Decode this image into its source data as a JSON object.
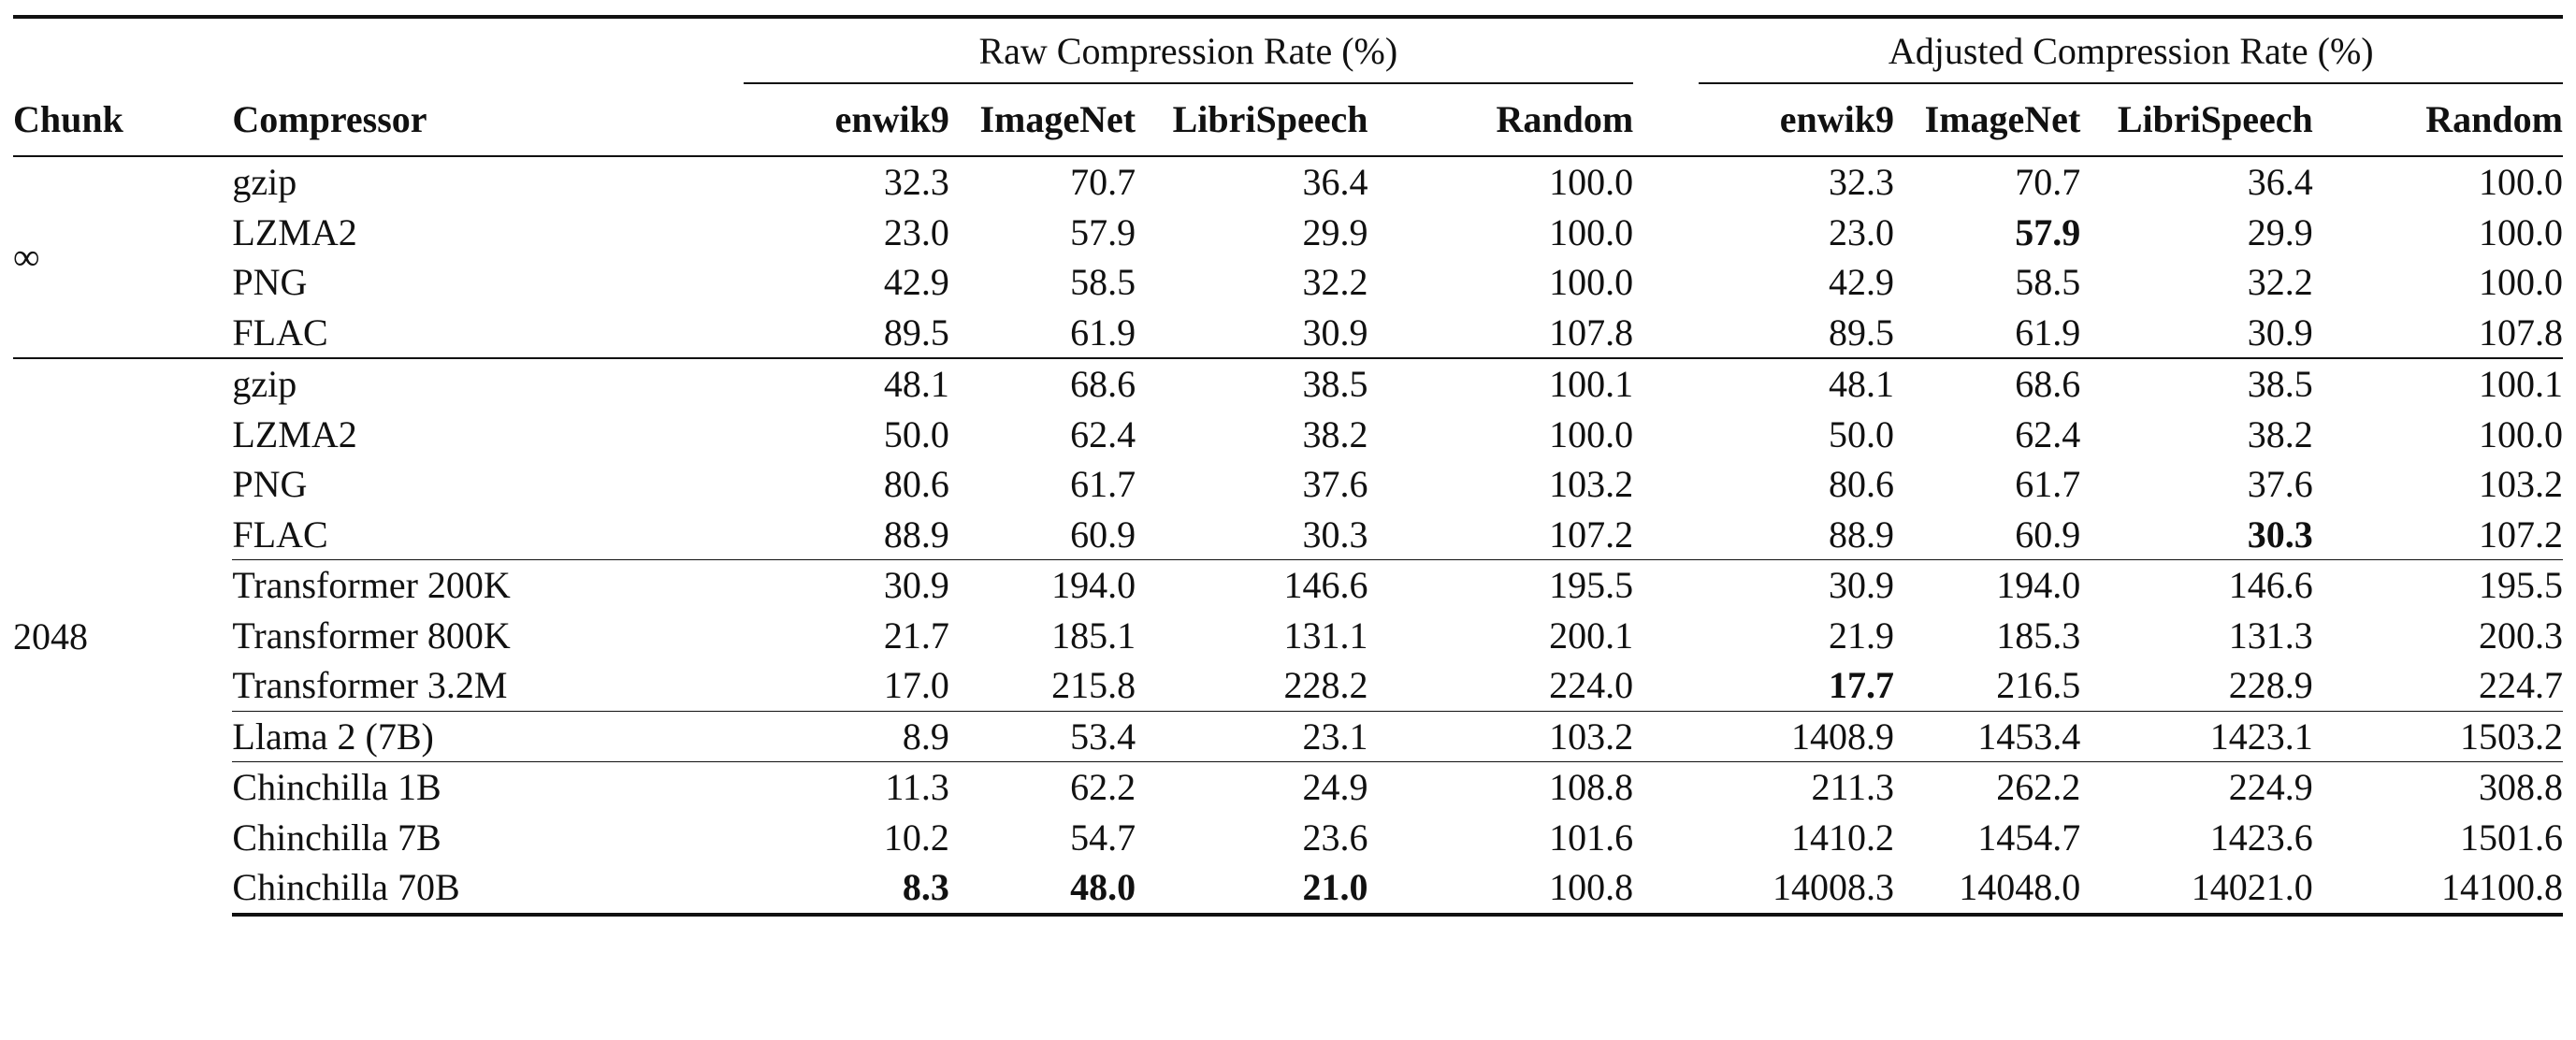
{
  "table": {
    "headers": {
      "chunk": "Chunk",
      "compressor": "Compressor",
      "raw_group": "Raw Compression Rate (%)",
      "adjusted_group": "Adjusted Compression Rate (%)",
      "raw_cols": [
        "enwik9",
        "ImageNet",
        "LibriSpeech",
        "Random"
      ],
      "adj_cols": [
        "enwik9",
        "ImageNet",
        "LibriSpeech",
        "Random"
      ]
    },
    "sections": [
      {
        "chunk": "∞",
        "groups": [
          {
            "rows": [
              {
                "name": "gzip",
                "raw": [
                  "32.3",
                  "70.7",
                  "36.4",
                  "100.0"
                ],
                "adj": [
                  "32.3",
                  "70.7",
                  "36.4",
                  "100.0"
                ]
              },
              {
                "name": "LZMA2",
                "raw": [
                  "23.0",
                  "57.9",
                  "29.9",
                  "100.0"
                ],
                "adj": [
                  "23.0",
                  "57.9",
                  "29.9",
                  "100.0"
                ]
              },
              {
                "name": "PNG",
                "raw": [
                  "42.9",
                  "58.5",
                  "32.2",
                  "100.0"
                ],
                "adj": [
                  "42.9",
                  "58.5",
                  "32.2",
                  "100.0"
                ]
              },
              {
                "name": "FLAC",
                "raw": [
                  "89.5",
                  "61.9",
                  "30.9",
                  "107.8"
                ],
                "adj": [
                  "89.5",
                  "61.9",
                  "30.9",
                  "107.8"
                ]
              }
            ]
          }
        ]
      },
      {
        "chunk": "2048",
        "groups": [
          {
            "rows": [
              {
                "name": "gzip",
                "raw": [
                  "48.1",
                  "68.6",
                  "38.5",
                  "100.1"
                ],
                "adj": [
                  "48.1",
                  "68.6",
                  "38.5",
                  "100.1"
                ]
              },
              {
                "name": "LZMA2",
                "raw": [
                  "50.0",
                  "62.4",
                  "38.2",
                  "100.0"
                ],
                "adj": [
                  "50.0",
                  "62.4",
                  "38.2",
                  "100.0"
                ]
              },
              {
                "name": "PNG",
                "raw": [
                  "80.6",
                  "61.7",
                  "37.6",
                  "103.2"
                ],
                "adj": [
                  "80.6",
                  "61.7",
                  "37.6",
                  "103.2"
                ]
              },
              {
                "name": "FLAC",
                "raw": [
                  "88.9",
                  "60.9",
                  "30.3",
                  "107.2"
                ],
                "adj": [
                  "88.9",
                  "60.9",
                  "30.3",
                  "107.2"
                ]
              }
            ]
          },
          {
            "rows": [
              {
                "name": "Transformer 200K",
                "raw": [
                  "30.9",
                  "194.0",
                  "146.6",
                  "195.5"
                ],
                "adj": [
                  "30.9",
                  "194.0",
                  "146.6",
                  "195.5"
                ]
              },
              {
                "name": "Transformer 800K",
                "raw": [
                  "21.7",
                  "185.1",
                  "131.1",
                  "200.1"
                ],
                "adj": [
                  "21.9",
                  "185.3",
                  "131.3",
                  "200.3"
                ]
              },
              {
                "name": "Transformer 3.2M",
                "raw": [
                  "17.0",
                  "215.8",
                  "228.2",
                  "224.0"
                ],
                "adj": [
                  "17.7",
                  "216.5",
                  "228.9",
                  "224.7"
                ]
              }
            ]
          },
          {
            "rows": [
              {
                "name": "Llama 2 (7B)",
                "raw": [
                  "8.9",
                  "53.4",
                  "23.1",
                  "103.2"
                ],
                "adj": [
                  "1408.9",
                  "1453.4",
                  "1423.1",
                  "1503.2"
                ]
              }
            ]
          },
          {
            "rows": [
              {
                "name": "Chinchilla 1B",
                "raw": [
                  "11.3",
                  "62.2",
                  "24.9",
                  "108.8"
                ],
                "adj": [
                  "211.3",
                  "262.2",
                  "224.9",
                  "308.8"
                ]
              },
              {
                "name": "Chinchilla 7B",
                "raw": [
                  "10.2",
                  "54.7",
                  "23.6",
                  "101.6"
                ],
                "adj": [
                  "1410.2",
                  "1454.7",
                  "1423.6",
                  "1501.6"
                ]
              },
              {
                "name": "Chinchilla 70B",
                "raw": [
                  "8.3",
                  "48.0",
                  "21.0",
                  "100.8"
                ],
                "adj": [
                  "14008.3",
                  "14048.0",
                  "14021.0",
                  "14100.8"
                ]
              }
            ]
          }
        ]
      }
    ],
    "bold_cells": [
      {
        "section": 0,
        "group": 0,
        "row": 1,
        "part": "adj",
        "col": 1
      },
      {
        "section": 1,
        "group": 0,
        "row": 3,
        "part": "adj",
        "col": 2
      },
      {
        "section": 1,
        "group": 1,
        "row": 2,
        "part": "adj",
        "col": 0
      },
      {
        "section": 1,
        "group": 3,
        "row": 2,
        "part": "raw",
        "col": 0
      },
      {
        "section": 1,
        "group": 3,
        "row": 2,
        "part": "raw",
        "col": 1
      },
      {
        "section": 1,
        "group": 3,
        "row": 2,
        "part": "raw",
        "col": 2
      }
    ]
  }
}
